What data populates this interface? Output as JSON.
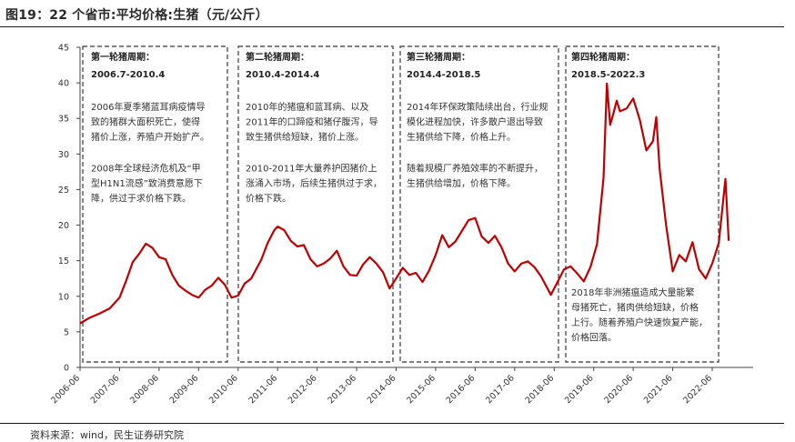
{
  "figure": {
    "title": "图19：22 个省市:平均价格:生猪（元/公斤）",
    "source": "资料来源：wind，民生证券研究院"
  },
  "chart_data": {
    "type": "line",
    "ylim": [
      0,
      45
    ],
    "yticks": [
      0,
      5,
      10,
      15,
      20,
      25,
      30,
      35,
      40,
      45
    ],
    "xticks": [
      "2006-06",
      "2007-06",
      "2008-06",
      "2009-06",
      "2010-06",
      "2011-06",
      "2012-06",
      "2013-06",
      "2014-06",
      "2015-06",
      "2016-06",
      "2017-06",
      "2018-06",
      "2019-06",
      "2020-06",
      "2021-06",
      "2022-06"
    ],
    "grid": false,
    "legend": "none",
    "colors": {
      "line": "#c00000",
      "box": "#555555"
    },
    "series": [
      {
        "x": [
          "2006-06",
          "2006-09",
          "2006-12",
          "2007-03",
          "2007-06",
          "2007-08",
          "2007-10",
          "2007-12",
          "2008-02",
          "2008-04",
          "2008-06",
          "2008-08",
          "2008-10",
          "2008-12",
          "2009-02",
          "2009-04",
          "2009-06",
          "2009-08",
          "2009-10",
          "2009-12",
          "2010-02",
          "2010-04",
          "2010-06",
          "2010-08",
          "2010-10",
          "2011-01",
          "2011-03",
          "2011-05",
          "2011-06",
          "2011-08",
          "2011-10",
          "2011-12",
          "2012-02",
          "2012-04",
          "2012-06",
          "2012-08",
          "2012-10",
          "2012-12",
          "2013-02",
          "2013-04",
          "2013-06",
          "2013-08",
          "2013-10",
          "2013-12",
          "2014-02",
          "2014-04",
          "2014-06",
          "2014-08",
          "2014-10",
          "2014-12",
          "2015-02",
          "2015-04",
          "2015-06",
          "2015-08",
          "2015-10",
          "2015-12",
          "2016-02",
          "2016-04",
          "2016-06",
          "2016-08",
          "2016-10",
          "2016-12",
          "2017-02",
          "2017-04",
          "2017-06",
          "2017-08",
          "2017-10",
          "2017-12",
          "2018-02",
          "2018-05",
          "2018-07",
          "2018-09",
          "2018-11",
          "2019-01",
          "2019-03",
          "2019-05",
          "2019-07",
          "2019-09",
          "2019-10",
          "2019-11",
          "2019-12",
          "2020-01",
          "2020-02",
          "2020-04",
          "2020-06",
          "2020-08",
          "2020-10",
          "2020-12",
          "2021-01",
          "2021-02",
          "2021-04",
          "2021-06",
          "2021-08",
          "2021-10",
          "2021-12",
          "2022-02",
          "2022-04",
          "2022-06",
          "2022-08",
          "2022-10",
          "2022-11"
        ],
        "y": [
          6.2,
          7.0,
          7.6,
          8.3,
          9.8,
          12.2,
          14.8,
          16.0,
          17.4,
          16.8,
          15.5,
          15.2,
          13.0,
          11.5,
          10.8,
          10.2,
          9.8,
          10.9,
          11.5,
          12.6,
          11.6,
          9.8,
          10.1,
          11.8,
          12.5,
          15.1,
          17.5,
          19.3,
          19.8,
          19.3,
          17.8,
          17.0,
          17.2,
          15.2,
          14.2,
          14.6,
          15.3,
          16.4,
          14.2,
          13.0,
          12.9,
          14.5,
          15.5,
          14.6,
          13.4,
          11.1,
          12.5,
          14.0,
          13.0,
          13.3,
          12.0,
          13.6,
          15.8,
          18.6,
          16.9,
          17.7,
          19.2,
          20.7,
          21.0,
          18.4,
          17.5,
          18.5,
          16.9,
          14.6,
          13.5,
          14.6,
          14.9,
          14.1,
          12.8,
          10.2,
          12.0,
          13.8,
          14.2,
          13.2,
          12.1,
          14.1,
          17.3,
          26.6,
          39.9,
          34.1,
          35.7,
          37.5,
          36.0,
          36.4,
          37.8,
          34.8,
          30.5,
          31.8,
          35.2,
          28.0,
          20.0,
          13.5,
          15.8,
          14.9,
          17.6,
          13.8,
          12.5,
          14.6,
          17.5,
          26.5,
          17.8
        ]
      }
    ],
    "periods": [
      {
        "title": "第一轮猪周期：",
        "range": "2006.7-2010.4",
        "paras": [
          [
            "2006年夏季猪蓝耳病疫情导",
            "致的猪群大面积死亡，使得",
            "猪价上涨，养殖户开始扩产。"
          ],
          [
            "2008年全球经济危机及“甲",
            "型H1N1流感”致消费意愿下",
            "降，供过于求价格下跌。"
          ]
        ]
      },
      {
        "title": "第二轮猪周期：",
        "range": "2010.4-2014.4",
        "paras": [
          [
            "2010年的猪瘟和蓝耳病、以及",
            "2011年的口蹄疫和猪仔腹泻，导",
            "致生猪供给短缺，猪价上涨。"
          ],
          [
            "2010-2011年大量养护因猪价上",
            "涨涌入市场，后续生猪供过于求，",
            "价格下跌。"
          ]
        ]
      },
      {
        "title": "第三轮猪周期：",
        "range": "2014.4-2018.5",
        "paras": [
          [
            "2014年环保政策陆续出台，行业规",
            "模化进程加快，许多散户退出导致",
            "生猪供给下降，价格上升。"
          ],
          [
            "随着规模厂养殖效率的不断提升，",
            "生猪供给增加，价格下降。"
          ]
        ]
      },
      {
        "title": "第四轮猪周期：",
        "range": "2018.5-2022.3",
        "paras": [
          [
            "2018年非洲猪瘟造成大量能繁",
            "母猪死亡，猪肉供给短缺，价格",
            "上行。随着养殖户快速恢复产能，",
            "价格回落。"
          ]
        ]
      }
    ]
  }
}
